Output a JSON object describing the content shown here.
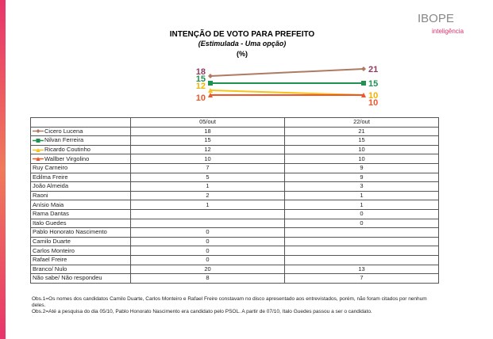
{
  "header": {
    "logo": "IBOPE",
    "logo_sub": "inteligência"
  },
  "chart_data": {
    "type": "line",
    "title": "INTENÇÃO DE VOTO PARA PREFEITO",
    "subtitle": "(Estimulada - Uma opção)",
    "unit": "(%)",
    "categories": [
      "05/out",
      "22/out"
    ],
    "series": [
      {
        "name": "Cicero Lucena",
        "color": "#b07a62",
        "label_color": "#8e3b5f",
        "marker": "diamond",
        "values": [
          18,
          21
        ]
      },
      {
        "name": "Nilvan Ferreira",
        "color": "#1f9150",
        "label_color": "#1f9150",
        "marker": "square",
        "values": [
          15,
          15
        ]
      },
      {
        "name": "Ricardo Coutinho",
        "color": "#f7c21b",
        "label_color": "#f0b400",
        "marker": "triangle",
        "values": [
          12,
          10
        ]
      },
      {
        "name": "Wallber Virgolino",
        "color": "#f0552a",
        "label_color": "#f0552a",
        "marker": "triangle",
        "values": [
          10,
          10
        ]
      }
    ]
  },
  "table": {
    "rows": [
      [
        "Ruy Carneiro",
        7,
        9
      ],
      [
        "Edilma Freire",
        5,
        9
      ],
      [
        "João Almeida",
        1,
        3
      ],
      [
        "Raoni",
        2,
        1
      ],
      [
        "Anísio Maia",
        1,
        1
      ],
      [
        "Rama Dantas",
        null,
        0
      ],
      [
        "Italo Guedes",
        null,
        0
      ],
      [
        "Pablo Honorato Nascimento",
        0,
        null
      ],
      [
        "Camilo Duarte",
        0,
        null
      ],
      [
        "Carlos Monteiro",
        0,
        null
      ],
      [
        "Rafael Freire",
        0,
        null
      ],
      [
        "Branco/ Nulo",
        20,
        13
      ],
      [
        "Não sabe/ Não respondeu",
        8,
        7
      ]
    ]
  },
  "notes": [
    "Obs.1=Os nomes dos candidatos Camilo Duarte, Carlos Monteiro e Rafael Freire constavam no disco apresentado aos entrevistados, porém, não foram citados por nenhum deles.",
    "Obs.2=Até a pesquisa do dia 05/10, Pablo Honorato Nascimento  era candidato pelo PSOL. A partir de 07/10, Italo Guedes passou a ser o candidato."
  ]
}
